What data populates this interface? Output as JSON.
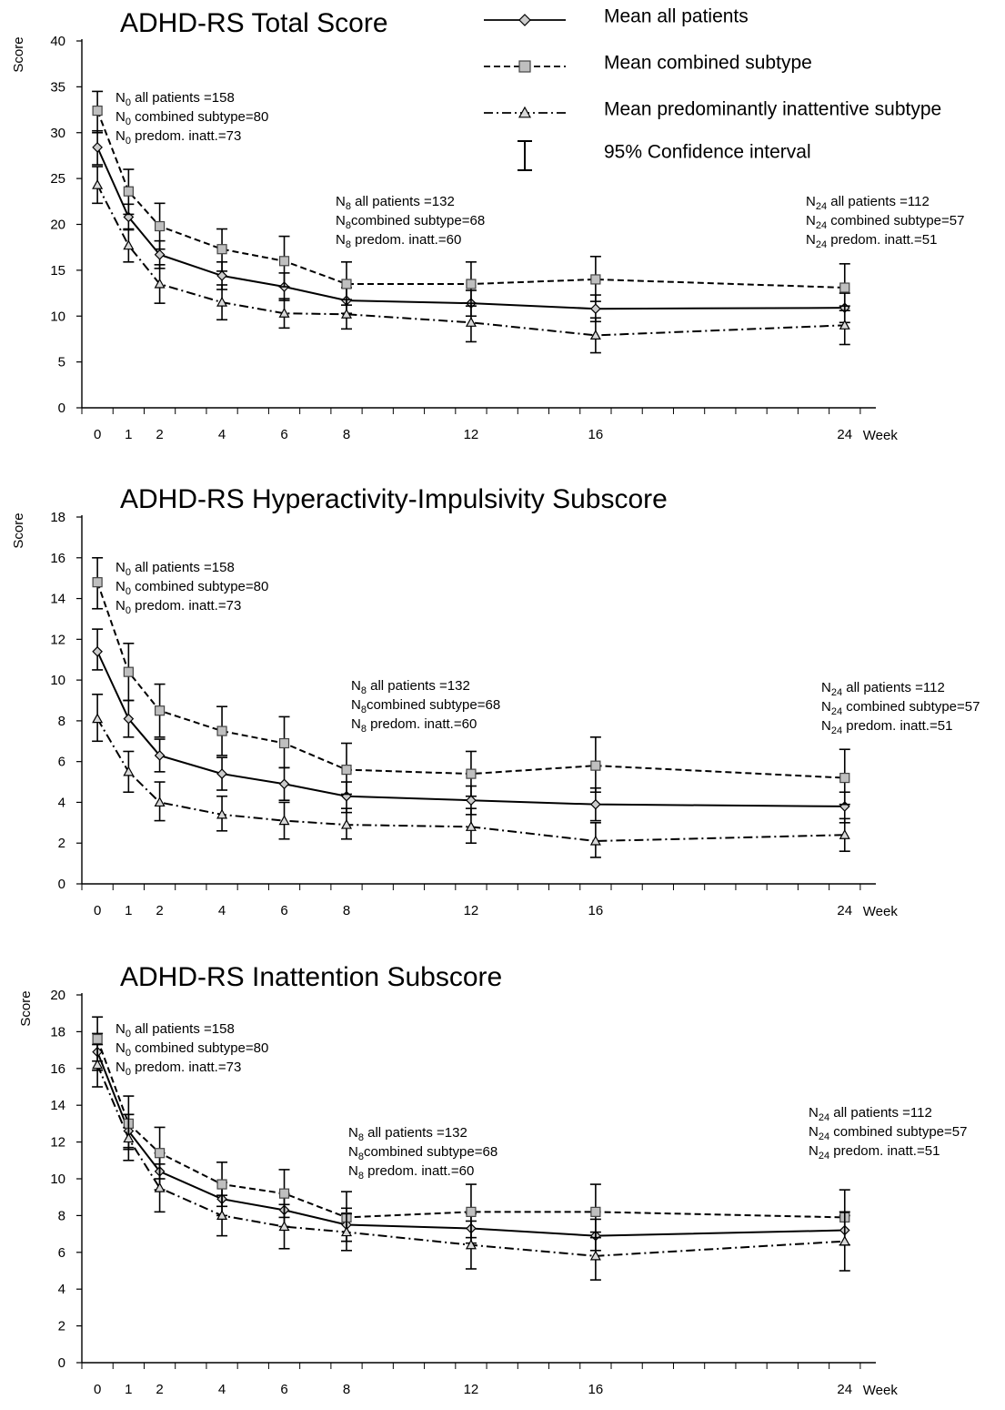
{
  "legend": {
    "items": [
      {
        "key": "all",
        "label": "Mean all patients",
        "marker": "diamond",
        "dash": "solid"
      },
      {
        "key": "combined",
        "label": "Mean combined subtype",
        "marker": "square",
        "dash": "dashed"
      },
      {
        "key": "inattentive",
        "label": "Mean predominantly inattentive subtype",
        "marker": "triangle",
        "dash": "dashdot"
      },
      {
        "key": "ci",
        "label": "95% Confidence interval",
        "marker": "errorbar",
        "dash": "none"
      }
    ]
  },
  "colors": {
    "line": "#000000",
    "marker_fill_square": "#bfbfbf",
    "marker_fill_diamond": "#cccccc",
    "marker_fill_triangle": "#d9d9d9",
    "dashed_gray": "#555555"
  },
  "chart_data": [
    {
      "type": "line",
      "title": "ADHD-RS Total Score",
      "ylabel": "Score",
      "xlabel": "Week",
      "x": [
        0,
        1,
        2,
        4,
        6,
        8,
        12,
        16,
        24
      ],
      "xticks": [
        "0",
        "1",
        "2",
        "4",
        "6",
        "8",
        "12",
        "16",
        "24"
      ],
      "ylim": [
        0,
        40
      ],
      "yticks": [
        0,
        5,
        10,
        15,
        20,
        25,
        30,
        35,
        40
      ],
      "grid": false,
      "series": [
        {
          "name": "Mean all patients",
          "key": "all",
          "values": [
            28.4,
            20.8,
            16.7,
            14.4,
            13.2,
            11.7,
            11.4,
            10.8,
            10.9
          ],
          "ci_low": [
            26.5,
            19.4,
            15.2,
            12.9,
            11.7,
            10.3,
            10.0,
            9.4,
            9.3
          ],
          "ci_high": [
            30.2,
            22.2,
            18.2,
            15.9,
            14.7,
            13.1,
            12.8,
            12.3,
            12.5
          ]
        },
        {
          "name": "Mean combined subtype",
          "key": "combined",
          "values": [
            32.4,
            23.6,
            19.8,
            17.3,
            16.0,
            13.5,
            13.5,
            14.0,
            13.1
          ],
          "ci_low": [
            30.0,
            21.1,
            17.3,
            14.9,
            13.2,
            11.2,
            11.1,
            11.6,
            10.6
          ],
          "ci_high": [
            34.5,
            26.0,
            22.3,
            19.5,
            18.7,
            15.9,
            15.9,
            16.5,
            15.7
          ]
        },
        {
          "name": "Mean predominantly inattentive subtype",
          "key": "inattentive",
          "values": [
            24.3,
            17.7,
            13.5,
            11.5,
            10.3,
            10.2,
            9.3,
            7.9,
            9.0
          ],
          "ci_low": [
            22.3,
            15.9,
            11.4,
            9.6,
            8.7,
            8.6,
            7.2,
            6.0,
            6.9
          ],
          "ci_high": [
            26.3,
            19.5,
            15.6,
            13.4,
            11.9,
            11.8,
            11.4,
            9.8,
            11.1
          ]
        }
      ],
      "annotations": [
        {
          "pos": "start",
          "lines": [
            [
              "N",
              "0",
              " all patients =158"
            ],
            [
              "N",
              "0",
              " combined subtype=80"
            ],
            [
              "N",
              "0",
              " predom. inatt.=73"
            ]
          ]
        },
        {
          "pos": "mid",
          "lines": [
            [
              "N",
              "8",
              " all patients =132"
            ],
            [
              "N",
              "8",
              "combined subtype=68"
            ],
            [
              "N",
              "8",
              " predom. inatt.=60"
            ]
          ]
        },
        {
          "pos": "end",
          "lines": [
            [
              "N",
              "24",
              " all patients =112"
            ],
            [
              "N",
              "24",
              " combined subtype=57"
            ],
            [
              "N",
              "24",
              " predom. inatt.=51"
            ]
          ]
        }
      ]
    },
    {
      "type": "line",
      "title": "ADHD-RS Hyperactivity-Impulsivity Subscore",
      "ylabel": "Score",
      "xlabel": "Week",
      "x": [
        0,
        1,
        2,
        4,
        6,
        8,
        12,
        16,
        24
      ],
      "xticks": [
        "0",
        "1",
        "2",
        "4",
        "6",
        "8",
        "12",
        "16",
        "24"
      ],
      "ylim": [
        0,
        18
      ],
      "yticks": [
        0,
        2,
        4,
        6,
        8,
        10,
        12,
        14,
        16,
        18
      ],
      "grid": false,
      "series": [
        {
          "name": "Mean all patients",
          "key": "all",
          "values": [
            11.4,
            8.1,
            6.3,
            5.4,
            4.9,
            4.3,
            4.1,
            3.9,
            3.8
          ],
          "ci_low": [
            10.5,
            7.2,
            5.5,
            4.6,
            4.1,
            3.5,
            3.4,
            3.1,
            3.0
          ],
          "ci_high": [
            12.5,
            9.0,
            7.1,
            6.2,
            5.7,
            5.0,
            4.8,
            4.7,
            4.5
          ]
        },
        {
          "name": "Mean combined subtype",
          "key": "combined",
          "values": [
            14.8,
            10.4,
            8.5,
            7.5,
            6.9,
            5.6,
            5.4,
            5.8,
            5.2
          ],
          "ci_low": [
            13.5,
            9.0,
            7.2,
            6.3,
            5.7,
            4.4,
            4.3,
            4.5,
            3.9
          ],
          "ci_high": [
            16.0,
            11.8,
            9.8,
            8.7,
            8.2,
            6.9,
            6.5,
            7.2,
            6.6
          ]
        },
        {
          "name": "Mean predominantly inattentive subtype",
          "key": "inattentive",
          "values": [
            8.1,
            5.5,
            4.0,
            3.4,
            3.1,
            2.9,
            2.8,
            2.1,
            2.4
          ],
          "ci_low": [
            7.0,
            4.5,
            3.1,
            2.6,
            2.2,
            2.2,
            2.0,
            1.3,
            1.6
          ],
          "ci_high": [
            9.3,
            6.5,
            5.0,
            4.3,
            4.0,
            3.7,
            3.7,
            3.0,
            3.2
          ]
        }
      ],
      "annotations": [
        {
          "pos": "start",
          "lines": [
            [
              "N",
              "0",
              " all patients =158"
            ],
            [
              "N",
              "0",
              " combined subtype=80"
            ],
            [
              "N",
              "0",
              " predom. inatt.=73"
            ]
          ]
        },
        {
          "pos": "mid",
          "lines": [
            [
              "N",
              "8",
              " all patients =132"
            ],
            [
              "N",
              "8",
              "combined subtype=68"
            ],
            [
              "N",
              "8",
              " predom. inatt.=60"
            ]
          ]
        },
        {
          "pos": "end",
          "lines": [
            [
              "N",
              "24",
              " all patients =112"
            ],
            [
              "N",
              "24",
              " combined subtype=57"
            ],
            [
              "N",
              "24",
              " predom. inatt.=51"
            ]
          ]
        }
      ]
    },
    {
      "type": "line",
      "title": "ADHD-RS Inattention Subscore",
      "ylabel": "Score",
      "xlabel": "Week",
      "x": [
        0,
        1,
        2,
        4,
        6,
        8,
        12,
        16,
        24
      ],
      "xticks": [
        "0",
        "1",
        "2",
        "4",
        "6",
        "8",
        "12",
        "16",
        "24"
      ],
      "ylim": [
        0,
        20
      ],
      "yticks": [
        0,
        2,
        4,
        6,
        8,
        10,
        12,
        14,
        16,
        18,
        20
      ],
      "grid": false,
      "series": [
        {
          "name": "Mean all patients",
          "key": "all",
          "values": [
            16.9,
            12.6,
            10.4,
            8.9,
            8.3,
            7.5,
            7.3,
            6.9,
            7.2
          ],
          "ci_low": [
            15.9,
            11.7,
            9.4,
            8.0,
            7.4,
            6.6,
            6.5,
            6.1,
            6.4
          ],
          "ci_high": [
            17.9,
            13.5,
            11.4,
            9.8,
            9.2,
            8.4,
            8.1,
            7.8,
            8.0
          ]
        },
        {
          "name": "Mean combined subtype",
          "key": "combined",
          "values": [
            17.6,
            13.0,
            11.4,
            9.7,
            9.2,
            7.9,
            8.2,
            8.2,
            7.9
          ],
          "ci_low": [
            16.4,
            11.6,
            10.0,
            8.5,
            7.9,
            6.6,
            6.8,
            6.8,
            6.4
          ],
          "ci_high": [
            18.8,
            14.5,
            12.8,
            10.9,
            10.5,
            9.3,
            9.7,
            9.7,
            9.4
          ]
        },
        {
          "name": "Mean predominantly inattentive subtype",
          "key": "inattentive",
          "values": [
            16.2,
            12.2,
            9.5,
            8.0,
            7.4,
            7.1,
            6.4,
            5.8,
            6.6
          ],
          "ci_low": [
            15.0,
            11.0,
            8.2,
            6.9,
            6.2,
            6.1,
            5.1,
            4.5,
            5.0
          ],
          "ci_high": [
            17.3,
            13.5,
            10.8,
            9.1,
            8.6,
            8.1,
            7.7,
            7.1,
            8.2
          ]
        }
      ],
      "annotations": [
        {
          "pos": "start",
          "lines": [
            [
              "N",
              "0",
              " all patients =158"
            ],
            [
              "N",
              "0",
              " combined subtype=80"
            ],
            [
              "N",
              "0",
              " predom. inatt.=73"
            ]
          ]
        },
        {
          "pos": "mid",
          "lines": [
            [
              "N",
              "8",
              " all patients =132"
            ],
            [
              "N",
              "8",
              "combined subtype=68"
            ],
            [
              "N",
              "8",
              " predom. inatt.=60"
            ]
          ]
        },
        {
          "pos": "end",
          "lines": [
            [
              "N",
              "24",
              " all patients =112"
            ],
            [
              "N",
              "24",
              " combined subtype=57"
            ],
            [
              "N",
              "24",
              " predom. inatt.=51"
            ]
          ]
        }
      ]
    }
  ]
}
